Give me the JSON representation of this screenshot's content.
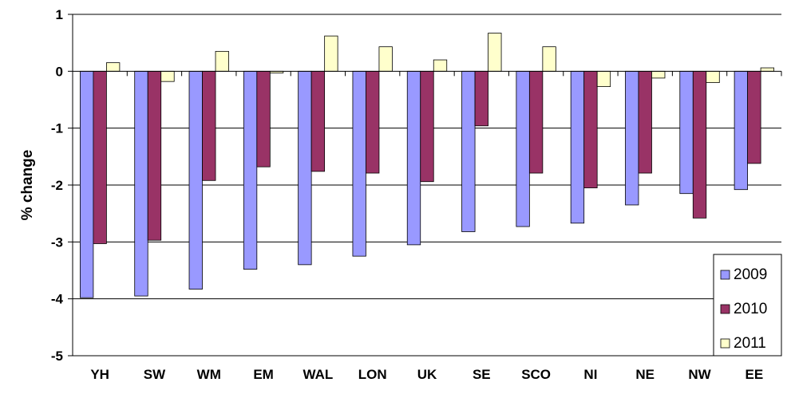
{
  "chart_data": {
    "type": "bar",
    "title": "",
    "xlabel": "",
    "ylabel": "% change",
    "ylim": [
      -5,
      1
    ],
    "yticks": [
      1,
      0,
      -1,
      -2,
      -3,
      -4,
      -5
    ],
    "grid": true,
    "legend_position": "bottom-right",
    "categories": [
      "YH",
      "SW",
      "WM",
      "EM",
      "WAL",
      "LON",
      "UK",
      "SE",
      "SCO",
      "NI",
      "NE",
      "NW",
      "EE"
    ],
    "series": [
      {
        "name": "2009",
        "color": "#9999FF",
        "values": [
          -3.98,
          -3.95,
          -3.83,
          -3.48,
          -3.4,
          -3.25,
          -3.05,
          -2.82,
          -2.73,
          -2.67,
          -2.35,
          -2.15,
          -2.08
        ]
      },
      {
        "name": "2010",
        "color": "#993366",
        "values": [
          -3.03,
          -2.97,
          -1.92,
          -1.68,
          -1.76,
          -1.79,
          -1.94,
          -0.96,
          -1.79,
          -2.05,
          -1.79,
          -2.58,
          -1.62
        ]
      },
      {
        "name": "2011",
        "color": "#FFFFCC",
        "values": [
          0.15,
          -0.18,
          0.35,
          -0.03,
          0.62,
          0.43,
          0.2,
          0.67,
          0.43,
          -0.27,
          -0.12,
          -0.2,
          0.06
        ]
      }
    ]
  }
}
